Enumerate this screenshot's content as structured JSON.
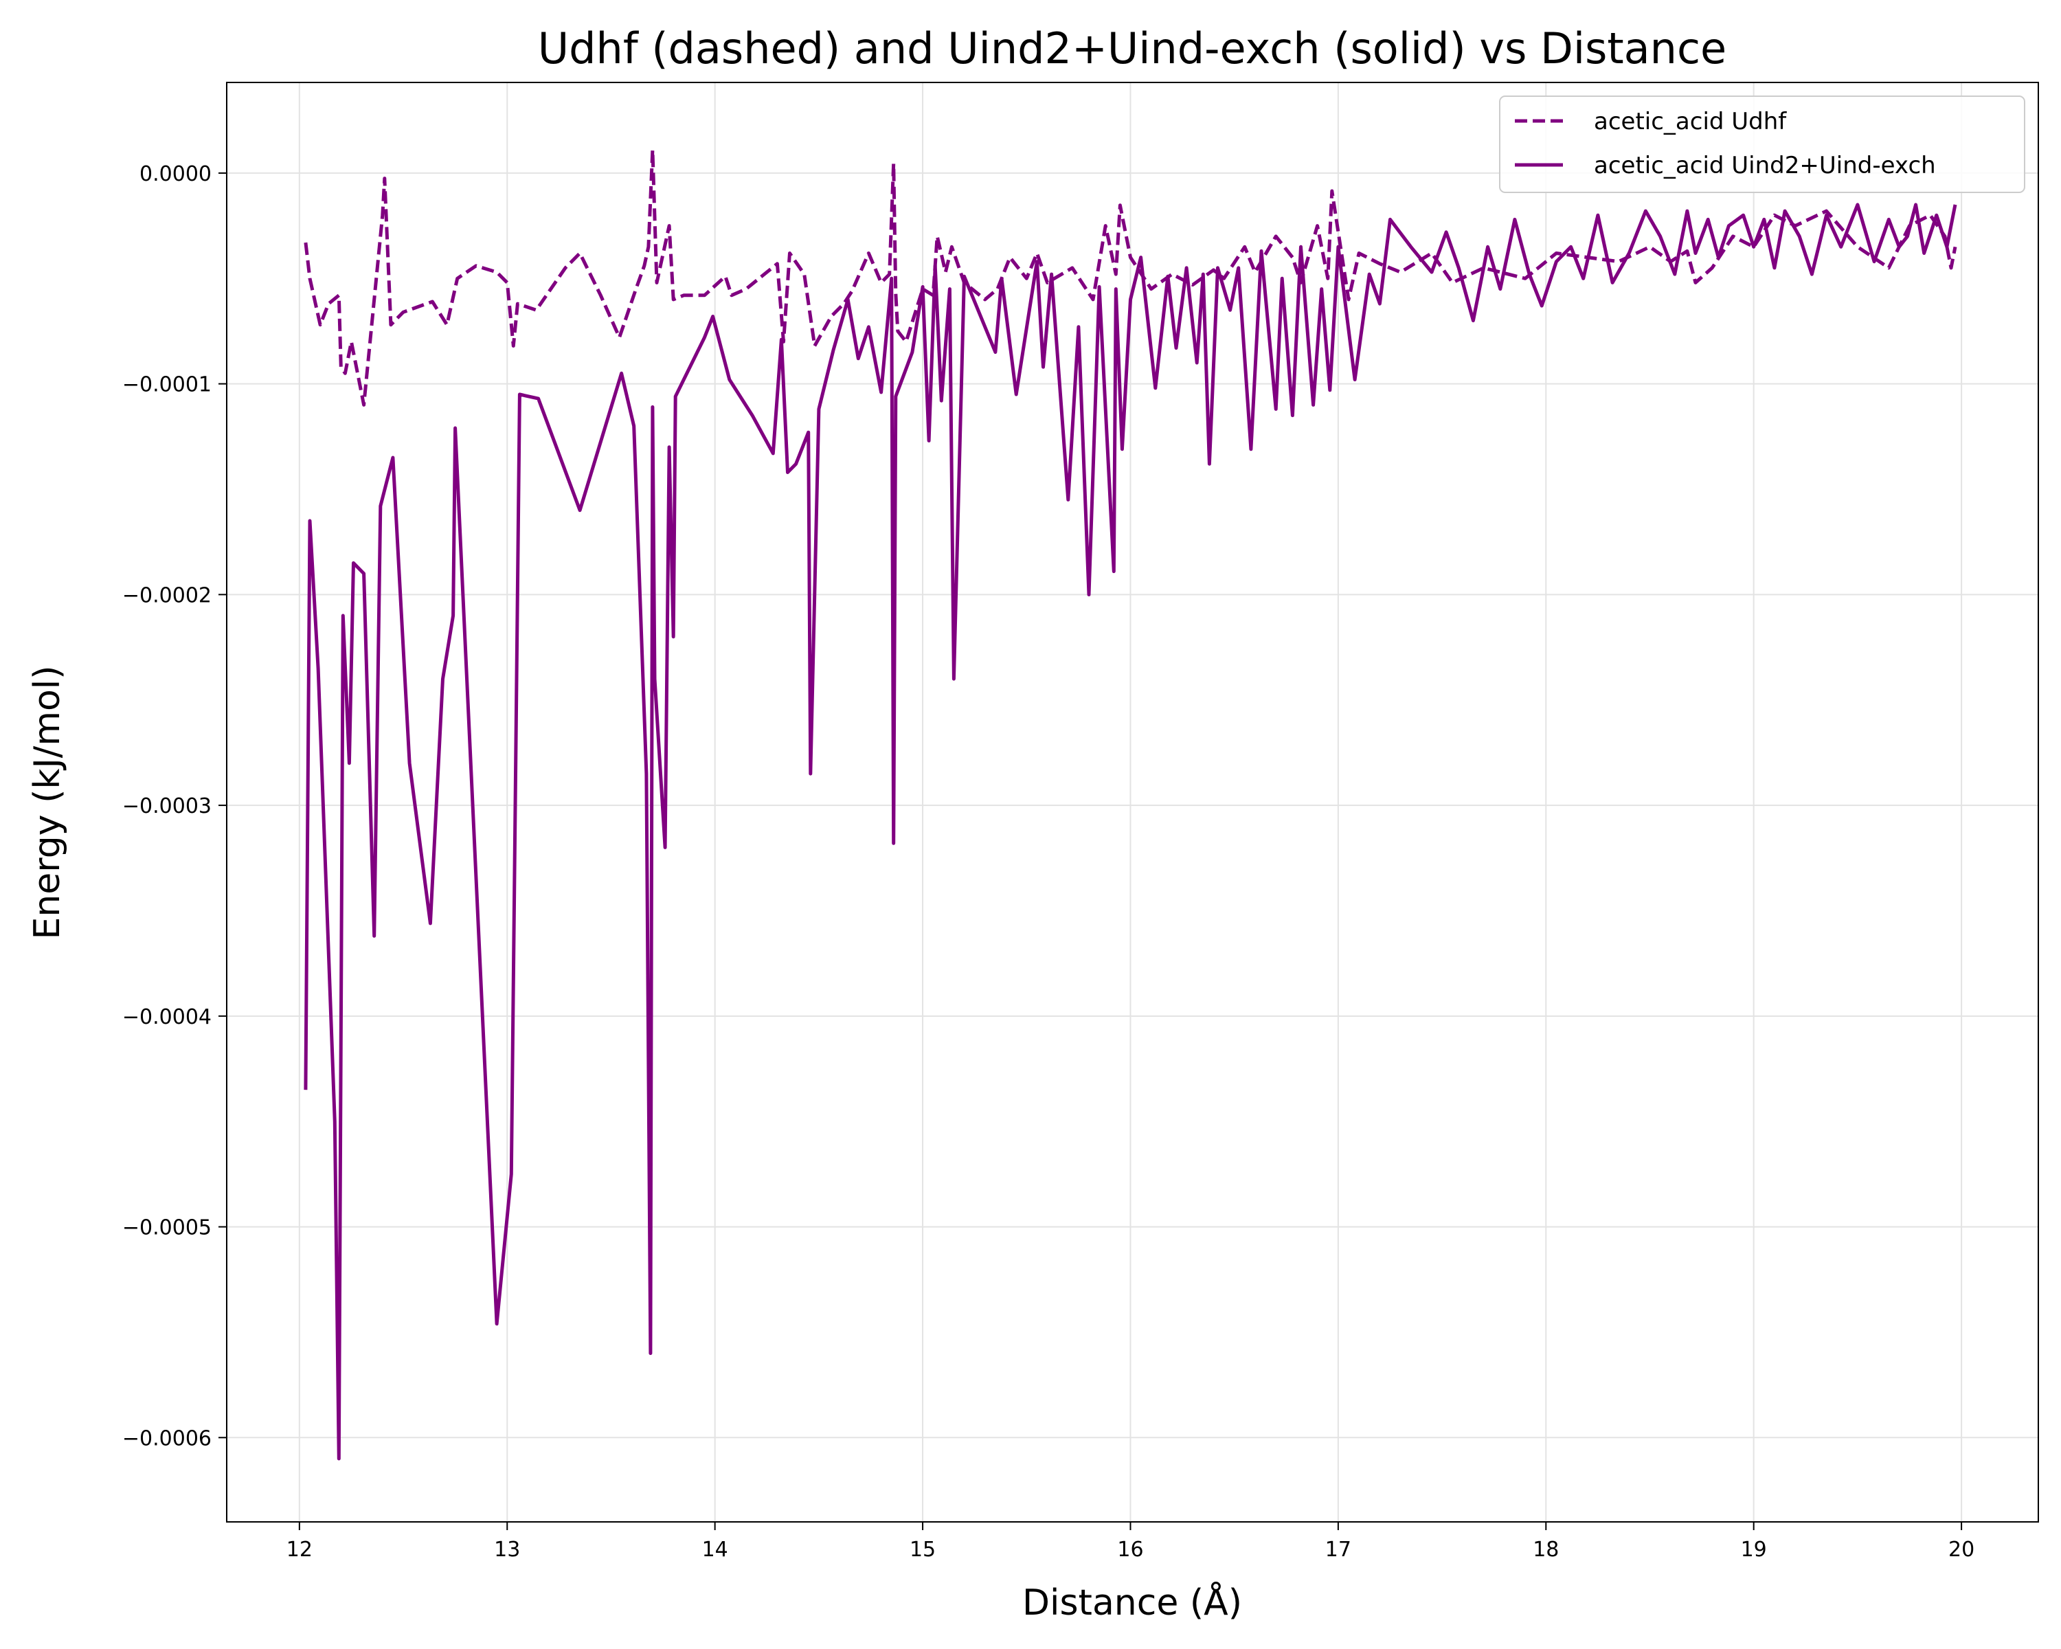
{
  "chart_data": {
    "type": "line",
    "title": "Udhf (dashed) and Uind2+Uind-exch (solid) vs Distance",
    "xlabel": "Distance (Å)",
    "ylabel": "Energy (kJ/mol)",
    "xlim": [
      11.65,
      20.37
    ],
    "ylim": [
      -0.00064,
      4.3e-05
    ],
    "x_ticks": [
      12,
      13,
      14,
      15,
      16,
      17,
      18,
      19,
      20
    ],
    "x_tick_labels": [
      "12",
      "13",
      "14",
      "15",
      "16",
      "17",
      "18",
      "19",
      "20"
    ],
    "y_ticks": [
      0.0,
      -0.0001,
      -0.0002,
      -0.0003,
      -0.0004,
      -0.0005,
      -0.0006
    ],
    "y_tick_labels": [
      "0.0000",
      "−0.0001",
      "−0.0002",
      "−0.0003",
      "−0.0004",
      "−0.0005",
      "−0.0006"
    ],
    "grid": true,
    "legend_position": "top-right",
    "color": "#800080",
    "series": [
      {
        "name": "acetic_acid Udhf",
        "style": "dashed",
        "x": [
          12.03,
          12.05,
          12.1,
          12.14,
          12.19,
          12.2,
          12.22,
          12.25,
          12.31,
          12.4,
          12.41,
          12.44,
          12.5,
          12.64,
          12.71,
          12.76,
          12.85,
          12.95,
          13.0,
          13.03,
          13.05,
          13.14,
          13.28,
          13.35,
          13.45,
          13.54,
          13.62,
          13.66,
          13.68,
          13.7,
          13.72,
          13.78,
          13.8,
          13.85,
          13.95,
          14.05,
          14.08,
          14.15,
          14.25,
          14.3,
          14.33,
          14.36,
          14.43,
          14.48,
          14.56,
          14.62,
          14.66,
          14.74,
          14.8,
          14.84,
          14.86,
          14.87,
          14.88,
          14.92,
          15.0,
          15.05,
          15.07,
          15.11,
          15.14,
          15.2,
          15.3,
          15.36,
          15.42,
          15.5,
          15.55,
          15.6,
          15.72,
          15.82,
          15.88,
          15.93,
          15.95,
          16.0,
          16.1,
          16.2,
          16.3,
          16.4,
          16.45,
          16.55,
          16.6,
          16.7,
          16.78,
          16.82,
          16.9,
          16.95,
          16.97,
          17.05,
          17.1,
          17.2,
          17.3,
          17.45,
          17.55,
          17.7,
          17.9,
          18.05,
          18.2,
          18.35,
          18.5,
          18.6,
          18.68,
          18.72,
          18.8,
          18.9,
          19.0,
          19.1,
          19.2,
          19.35,
          19.5,
          19.65,
          19.75,
          19.85,
          19.92,
          19.95,
          19.97
        ],
        "y": [
          -3.3e-05,
          -5e-05,
          -7.2e-05,
          -6.2e-05,
          -5.8e-05,
          -9.2e-05,
          -9.5e-05,
          -8e-05,
          -0.00011,
          -2e-05,
          -2.5e-06,
          -7.2e-05,
          -6.6e-05,
          -6.1e-05,
          -7.2e-05,
          -5e-05,
          -4.4e-05,
          -4.7e-05,
          -5.2e-05,
          -8.2e-05,
          -6.2e-05,
          -6.5e-05,
          -4.5e-05,
          -3.8e-05,
          -5.8e-05,
          -7.8e-05,
          -5.5e-05,
          -4.4e-05,
          -3.5e-05,
          1.1e-05,
          -5.2e-05,
          -2.5e-05,
          -6e-05,
          -5.8e-05,
          -5.8e-05,
          -4.9e-05,
          -5.8e-05,
          -5.5e-05,
          -4.7e-05,
          -4.3e-05,
          -8e-05,
          -3.8e-05,
          -4.8e-05,
          -8.2e-05,
          -6.8e-05,
          -6.2e-05,
          -5.6e-05,
          -3.8e-05,
          -5.2e-05,
          -4.8e-05,
          4.5e-06,
          -5.7e-05,
          -7.5e-05,
          -8e-05,
          -5.5e-05,
          -5.8e-05,
          -3e-05,
          -4.7e-05,
          -3.5e-05,
          -5.2e-05,
          -6e-05,
          -5.5e-05,
          -4e-05,
          -5e-05,
          -3.8e-05,
          -5.2e-05,
          -4.5e-05,
          -6e-05,
          -2.5e-05,
          -4.8e-05,
          -1.53e-05,
          -4e-05,
          -5.5e-05,
          -4.8e-05,
          -5.3e-05,
          -4.6e-05,
          -5e-05,
          -3.5e-05,
          -4.7e-05,
          -3e-05,
          -4e-05,
          -5.2e-05,
          -2.5e-05,
          -5e-05,
          -8.5e-06,
          -6e-05,
          -3.8e-05,
          -4.3e-05,
          -4.7e-05,
          -3.8e-05,
          -5.2e-05,
          -4.5e-05,
          -5e-05,
          -3.8e-05,
          -4e-05,
          -4.2e-05,
          -3.5e-05,
          -4.2e-05,
          -3.7e-05,
          -5.2e-05,
          -4.5e-05,
          -3e-05,
          -3.5e-05,
          -2e-05,
          -2.5e-05,
          -1.8e-05,
          -3.5e-05,
          -4.5e-05,
          -2.5e-05,
          -2e-05,
          -3e-05,
          -4.5e-05,
          -3.5e-05
        ]
      },
      {
        "name": "acetic_acid Uind2+Uind-exch",
        "style": "solid",
        "x": [
          12.03,
          12.05,
          12.09,
          12.17,
          12.19,
          12.21,
          12.24,
          12.26,
          12.31,
          12.36,
          12.39,
          12.45,
          12.53,
          12.63,
          12.69,
          12.74,
          12.75,
          12.95,
          13.02,
          13.06,
          13.15,
          13.35,
          13.55,
          13.61,
          13.67,
          13.69,
          13.7,
          13.71,
          13.76,
          13.78,
          13.8,
          13.81,
          13.95,
          13.99,
          14.07,
          14.18,
          14.28,
          14.32,
          14.35,
          14.39,
          14.45,
          14.46,
          14.5,
          14.57,
          14.64,
          14.69,
          14.74,
          14.8,
          14.85,
          14.86,
          14.87,
          14.95,
          15.0,
          15.03,
          15.06,
          15.09,
          15.13,
          15.15,
          15.2,
          15.35,
          15.38,
          15.45,
          15.55,
          15.58,
          15.62,
          15.7,
          15.75,
          15.8,
          15.85,
          15.92,
          15.93,
          15.96,
          16.0,
          16.05,
          16.12,
          16.18,
          16.22,
          16.27,
          16.32,
          16.35,
          16.38,
          16.42,
          16.48,
          16.52,
          16.58,
          16.63,
          16.7,
          16.73,
          16.78,
          16.82,
          16.88,
          16.92,
          16.96,
          17.0,
          17.08,
          17.15,
          17.2,
          17.25,
          17.35,
          17.45,
          17.52,
          17.58,
          17.65,
          17.72,
          17.78,
          17.85,
          17.92,
          17.98,
          18.05,
          18.12,
          18.18,
          18.25,
          18.32,
          18.4,
          18.48,
          18.55,
          18.62,
          18.68,
          18.72,
          18.78,
          18.83,
          18.88,
          18.95,
          19.0,
          19.05,
          19.1,
          19.15,
          19.22,
          19.28,
          19.35,
          19.42,
          19.5,
          19.58,
          19.65,
          19.7,
          19.74,
          19.78,
          19.82,
          19.88,
          19.93,
          19.97
        ],
        "y": [
          -0.000435,
          -0.000165,
          -0.000235,
          -0.00045,
          -0.00061,
          -0.00021,
          -0.00028,
          -0.000185,
          -0.00019,
          -0.000362,
          -0.000158,
          -0.000135,
          -0.00028,
          -0.000356,
          -0.00024,
          -0.00021,
          -0.000121,
          -0.000546,
          -0.000475,
          -0.000105,
          -0.000107,
          -0.00016,
          -9.5e-05,
          -0.00012,
          -0.000285,
          -0.00056,
          -0.000111,
          -0.00024,
          -0.00032,
          -0.00013,
          -0.00022,
          -0.000106,
          -7.8e-05,
          -6.8e-05,
          -9.8e-05,
          -0.000115,
          -0.000133,
          -7.9e-05,
          -0.000142,
          -0.000138,
          -0.000123,
          -0.000285,
          -0.000112,
          -8.4e-05,
          -6e-05,
          -8.8e-05,
          -7.3e-05,
          -0.000104,
          -5e-05,
          -0.000318,
          -0.000106,
          -8.5e-05,
          -5.4e-05,
          -0.000127,
          -4.4e-05,
          -0.000108,
          -5.5e-05,
          -0.00024,
          -4.9e-05,
          -8.5e-05,
          -5e-05,
          -0.000105,
          -4.2e-05,
          -9.2e-05,
          -4.8e-05,
          -0.000155,
          -7.3e-05,
          -0.0002,
          -5.4e-05,
          -0.000189,
          -5.5e-05,
          -0.000131,
          -6e-05,
          -4e-05,
          -0.000102,
          -4.9e-05,
          -8.3e-05,
          -4.5e-05,
          -9e-05,
          -4.8e-05,
          -0.000138,
          -4.5e-05,
          -6.5e-05,
          -4.5e-05,
          -0.000131,
          -3.7e-05,
          -0.000112,
          -5e-05,
          -0.000115,
          -3.5e-05,
          -0.00011,
          -5.5e-05,
          -0.000103,
          -3.5e-05,
          -9.8e-05,
          -4.8e-05,
          -6.2e-05,
          -2.2e-05,
          -3.5e-05,
          -4.7e-05,
          -2.8e-05,
          -4.5e-05,
          -7e-05,
          -3.5e-05,
          -5.5e-05,
          -2.2e-05,
          -4.8e-05,
          -6.3e-05,
          -4.2e-05,
          -3.5e-05,
          -5e-05,
          -2e-05,
          -5.2e-05,
          -3.8e-05,
          -1.8e-05,
          -3e-05,
          -4.8e-05,
          -1.8e-05,
          -3.8e-05,
          -2.2e-05,
          -4e-05,
          -2.5e-05,
          -2e-05,
          -3.5e-05,
          -2.2e-05,
          -4.5e-05,
          -1.8e-05,
          -3e-05,
          -4.8e-05,
          -2e-05,
          -3.5e-05,
          -1.5e-05,
          -4.2e-05,
          -2.2e-05,
          -3.5e-05,
          -3e-05,
          -1.5e-05,
          -3.8e-05,
          -2e-05,
          -3.5e-05,
          -1.5e-05
        ]
      }
    ]
  }
}
